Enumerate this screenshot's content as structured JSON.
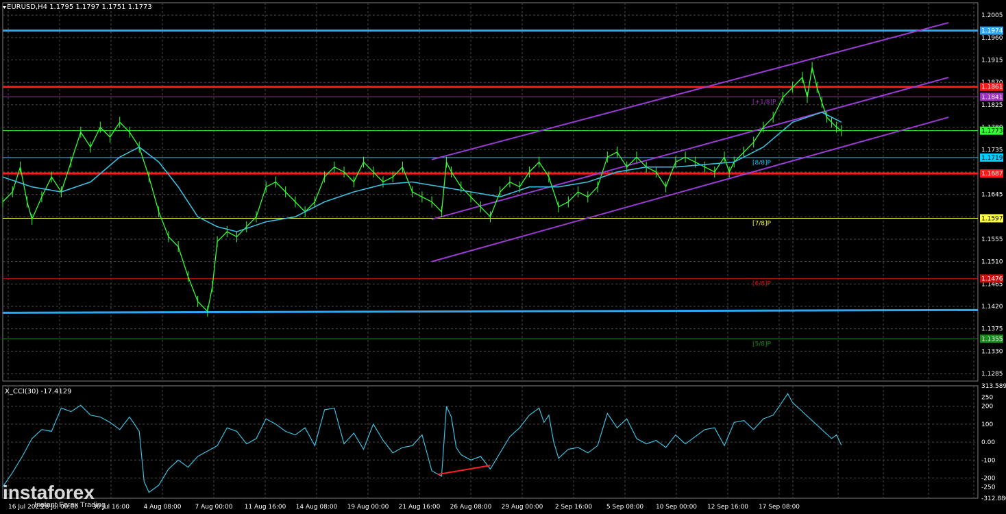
{
  "header": {
    "main_title": "EURUSD,H4  1.1795 1.1797 1.1751 1.1773",
    "cci_title": "X_CCI(30) -17.4129"
  },
  "watermark": {
    "brand": "instaforex",
    "tagline": "Instant Forex Trading"
  },
  "colors": {
    "background": "#000000",
    "grid": "#4a4a4a",
    "price": "#32ff32",
    "ma": "#3bbfe0",
    "channel": "#9b3bd6",
    "level_blue": "#2fa6f0",
    "level_red": "#ff1a1a",
    "level_yellow": "#ffff40",
    "level_darkred": "#cc1111",
    "level_darkgreen": "#1c8a1c",
    "level_purple": "#a030c0",
    "level_cyan": "#00d0ff",
    "cci_line": "#3bbfe0",
    "divergence": "#ff2020"
  },
  "chart_data": [
    {
      "type": "line",
      "symbol": "EURUSD",
      "timeframe": "H4",
      "ohlc": {
        "open": 1.1795,
        "high": 1.1797,
        "low": 1.1751,
        "close": 1.1773
      },
      "y_ticks": [
        "1.2005",
        "1.1960",
        "1.1915",
        "1.1870",
        "1.1825",
        "1.1780",
        "1.1735",
        "1.1690",
        "1.1645",
        "1.1600",
        "1.1555",
        "1.1510",
        "1.1465",
        "1.1420",
        "1.1375",
        "1.1330",
        "1.1285"
      ],
      "ylim": [
        1.127,
        1.203
      ],
      "x_ticks": [
        "16 Jul 2025",
        "28 Jul 00:00",
        "30 Jul 16:00",
        "4 Aug 08:00",
        "7 Aug 00:00",
        "11 Aug 16:00",
        "14 Aug 08:00",
        "19 Aug 00:00",
        "21 Aug 16:00",
        "26 Aug 08:00",
        "29 Aug 00:00",
        "2 Sep 16:00",
        "5 Sep 08:00",
        "10 Sep 00:00",
        "12 Sep 16:00",
        "17 Sep 08:00"
      ],
      "price_series": [
        {
          "x": 0.0,
          "y": 1.163
        },
        {
          "x": 0.01,
          "y": 1.165
        },
        {
          "x": 0.018,
          "y": 1.17
        },
        {
          "x": 0.025,
          "y": 1.163
        },
        {
          "x": 0.03,
          "y": 1.1595
        },
        {
          "x": 0.04,
          "y": 1.164
        },
        {
          "x": 0.05,
          "y": 1.168
        },
        {
          "x": 0.06,
          "y": 1.165
        },
        {
          "x": 0.07,
          "y": 1.171
        },
        {
          "x": 0.08,
          "y": 1.177
        },
        {
          "x": 0.09,
          "y": 1.174
        },
        {
          "x": 0.1,
          "y": 1.178
        },
        {
          "x": 0.11,
          "y": 1.176
        },
        {
          "x": 0.12,
          "y": 1.179
        },
        {
          "x": 0.13,
          "y": 1.177
        },
        {
          "x": 0.14,
          "y": 1.174
        },
        {
          "x": 0.15,
          "y": 1.168
        },
        {
          "x": 0.16,
          "y": 1.161
        },
        {
          "x": 0.17,
          "y": 1.156
        },
        {
          "x": 0.18,
          "y": 1.154
        },
        {
          "x": 0.19,
          "y": 1.148
        },
        {
          "x": 0.2,
          "y": 1.143
        },
        {
          "x": 0.21,
          "y": 1.141
        },
        {
          "x": 0.215,
          "y": 1.146
        },
        {
          "x": 0.22,
          "y": 1.155
        },
        {
          "x": 0.23,
          "y": 1.157
        },
        {
          "x": 0.24,
          "y": 1.156
        },
        {
          "x": 0.25,
          "y": 1.158
        },
        {
          "x": 0.26,
          "y": 1.16
        },
        {
          "x": 0.27,
          "y": 1.166
        },
        {
          "x": 0.28,
          "y": 1.167
        },
        {
          "x": 0.29,
          "y": 1.165
        },
        {
          "x": 0.3,
          "y": 1.163
        },
        {
          "x": 0.31,
          "y": 1.161
        },
        {
          "x": 0.32,
          "y": 1.163
        },
        {
          "x": 0.33,
          "y": 1.168
        },
        {
          "x": 0.34,
          "y": 1.17
        },
        {
          "x": 0.35,
          "y": 1.169
        },
        {
          "x": 0.36,
          "y": 1.167
        },
        {
          "x": 0.37,
          "y": 1.171
        },
        {
          "x": 0.38,
          "y": 1.169
        },
        {
          "x": 0.39,
          "y": 1.167
        },
        {
          "x": 0.4,
          "y": 1.168
        },
        {
          "x": 0.41,
          "y": 1.17
        },
        {
          "x": 0.42,
          "y": 1.165
        },
        {
          "x": 0.43,
          "y": 1.164
        },
        {
          "x": 0.44,
          "y": 1.163
        },
        {
          "x": 0.45,
          "y": 1.161
        },
        {
          "x": 0.455,
          "y": 1.171
        },
        {
          "x": 0.46,
          "y": 1.169
        },
        {
          "x": 0.47,
          "y": 1.166
        },
        {
          "x": 0.48,
          "y": 1.164
        },
        {
          "x": 0.49,
          "y": 1.162
        },
        {
          "x": 0.5,
          "y": 1.16
        },
        {
          "x": 0.51,
          "y": 1.165
        },
        {
          "x": 0.52,
          "y": 1.167
        },
        {
          "x": 0.53,
          "y": 1.166
        },
        {
          "x": 0.54,
          "y": 1.169
        },
        {
          "x": 0.55,
          "y": 1.171
        },
        {
          "x": 0.56,
          "y": 1.168
        },
        {
          "x": 0.57,
          "y": 1.162
        },
        {
          "x": 0.58,
          "y": 1.163
        },
        {
          "x": 0.59,
          "y": 1.165
        },
        {
          "x": 0.6,
          "y": 1.164
        },
        {
          "x": 0.61,
          "y": 1.166
        },
        {
          "x": 0.62,
          "y": 1.172
        },
        {
          "x": 0.63,
          "y": 1.173
        },
        {
          "x": 0.64,
          "y": 1.17
        },
        {
          "x": 0.65,
          "y": 1.172
        },
        {
          "x": 0.66,
          "y": 1.17
        },
        {
          "x": 0.67,
          "y": 1.169
        },
        {
          "x": 0.68,
          "y": 1.166
        },
        {
          "x": 0.69,
          "y": 1.171
        },
        {
          "x": 0.7,
          "y": 1.172
        },
        {
          "x": 0.71,
          "y": 1.171
        },
        {
          "x": 0.72,
          "y": 1.17
        },
        {
          "x": 0.73,
          "y": 1.169
        },
        {
          "x": 0.74,
          "y": 1.172
        },
        {
          "x": 0.745,
          "y": 1.169
        },
        {
          "x": 0.75,
          "y": 1.171
        },
        {
          "x": 0.76,
          "y": 1.173
        },
        {
          "x": 0.77,
          "y": 1.175
        },
        {
          "x": 0.78,
          "y": 1.178
        },
        {
          "x": 0.79,
          "y": 1.18
        },
        {
          "x": 0.8,
          "y": 1.184
        },
        {
          "x": 0.81,
          "y": 1.186
        },
        {
          "x": 0.82,
          "y": 1.188
        },
        {
          "x": 0.825,
          "y": 1.184
        },
        {
          "x": 0.83,
          "y": 1.19
        },
        {
          "x": 0.835,
          "y": 1.186
        },
        {
          "x": 0.84,
          "y": 1.183
        },
        {
          "x": 0.845,
          "y": 1.18
        },
        {
          "x": 0.85,
          "y": 1.179
        },
        {
          "x": 0.855,
          "y": 1.178
        },
        {
          "x": 0.86,
          "y": 1.1773
        }
      ],
      "ma_series": [
        {
          "x": 0.0,
          "y": 1.168
        },
        {
          "x": 0.03,
          "y": 1.166
        },
        {
          "x": 0.06,
          "y": 1.165
        },
        {
          "x": 0.09,
          "y": 1.167
        },
        {
          "x": 0.12,
          "y": 1.172
        },
        {
          "x": 0.14,
          "y": 1.174
        },
        {
          "x": 0.16,
          "y": 1.171
        },
        {
          "x": 0.18,
          "y": 1.166
        },
        {
          "x": 0.2,
          "y": 1.16
        },
        {
          "x": 0.22,
          "y": 1.158
        },
        {
          "x": 0.24,
          "y": 1.157
        },
        {
          "x": 0.27,
          "y": 1.159
        },
        {
          "x": 0.3,
          "y": 1.16
        },
        {
          "x": 0.33,
          "y": 1.163
        },
        {
          "x": 0.36,
          "y": 1.165
        },
        {
          "x": 0.39,
          "y": 1.1665
        },
        {
          "x": 0.42,
          "y": 1.167
        },
        {
          "x": 0.45,
          "y": 1.166
        },
        {
          "x": 0.48,
          "y": 1.165
        },
        {
          "x": 0.51,
          "y": 1.164
        },
        {
          "x": 0.54,
          "y": 1.166
        },
        {
          "x": 0.57,
          "y": 1.166
        },
        {
          "x": 0.6,
          "y": 1.167
        },
        {
          "x": 0.63,
          "y": 1.169
        },
        {
          "x": 0.66,
          "y": 1.17
        },
        {
          "x": 0.69,
          "y": 1.17
        },
        {
          "x": 0.72,
          "y": 1.1705
        },
        {
          "x": 0.75,
          "y": 1.171
        },
        {
          "x": 0.78,
          "y": 1.174
        },
        {
          "x": 0.81,
          "y": 1.179
        },
        {
          "x": 0.84,
          "y": 1.181
        },
        {
          "x": 0.86,
          "y": 1.179
        }
      ],
      "channel_lines": [
        {
          "x1": 0.44,
          "y1": 1.1715,
          "x2": 0.97,
          "y2": 1.199
        },
        {
          "x1": 0.44,
          "y1": 1.1595,
          "x2": 0.97,
          "y2": 1.188
        },
        {
          "x1": 0.44,
          "y1": 1.151,
          "x2": 0.97,
          "y2": 1.18
        }
      ],
      "horizontal_levels": [
        {
          "price": 1.1974,
          "label": "1.1974",
          "color": "level_blue",
          "thick": true
        },
        {
          "price": 1.1861,
          "label": "1.1861",
          "color": "level_red",
          "thick": true
        },
        {
          "price": 1.1841,
          "label": "1.1841",
          "color": "level_purple",
          "thick": false,
          "murrey": "[+1/8]P"
        },
        {
          "price": 1.1773,
          "label": "1.1773",
          "color": "price",
          "thick": false
        },
        {
          "price": 1.1719,
          "label": "1.1719",
          "color": "level_cyan",
          "thick": false,
          "murrey": "[8/8]P"
        },
        {
          "price": 1.1687,
          "label": "1.1687",
          "color": "level_red",
          "thick": true
        },
        {
          "price": 1.1597,
          "label": "1.1597",
          "color": "level_yellow",
          "thick": false,
          "murrey": "[7/8]P"
        },
        {
          "price": 1.1476,
          "label": "1.1476",
          "color": "level_darkred",
          "thick": false,
          "murrey": "[6/8]P"
        },
        {
          "price": 1.1355,
          "label": "1.1355",
          "color": "level_darkgreen",
          "thick": false,
          "murrey": "[5/8]P"
        }
      ],
      "lower_blue_level": {
        "price": 1.141,
        "color": "level_blue"
      }
    },
    {
      "type": "line",
      "name": "X_CCI(30)",
      "value": -17.4129,
      "y_ticks": [
        "313.5897",
        "250",
        "200",
        "100",
        "0.00",
        "-100",
        "-200",
        "-250",
        "-312.8800"
      ],
      "ylim": [
        -312.88,
        313.5897
      ],
      "series": [
        {
          "x": 0.0,
          "y": -250
        },
        {
          "x": 0.01,
          "y": -170
        },
        {
          "x": 0.02,
          "y": -80
        },
        {
          "x": 0.03,
          "y": 20
        },
        {
          "x": 0.04,
          "y": 70
        },
        {
          "x": 0.05,
          "y": 60
        },
        {
          "x": 0.06,
          "y": 190
        },
        {
          "x": 0.07,
          "y": 170
        },
        {
          "x": 0.08,
          "y": 205
        },
        {
          "x": 0.09,
          "y": 150
        },
        {
          "x": 0.1,
          "y": 140
        },
        {
          "x": 0.11,
          "y": 110
        },
        {
          "x": 0.12,
          "y": 70
        },
        {
          "x": 0.13,
          "y": 140
        },
        {
          "x": 0.14,
          "y": 60
        },
        {
          "x": 0.145,
          "y": -220
        },
        {
          "x": 0.15,
          "y": -280
        },
        {
          "x": 0.16,
          "y": -240
        },
        {
          "x": 0.17,
          "y": -150
        },
        {
          "x": 0.18,
          "y": -100
        },
        {
          "x": 0.19,
          "y": -140
        },
        {
          "x": 0.2,
          "y": -80
        },
        {
          "x": 0.22,
          "y": -20
        },
        {
          "x": 0.23,
          "y": 80
        },
        {
          "x": 0.24,
          "y": 60
        },
        {
          "x": 0.25,
          "y": -10
        },
        {
          "x": 0.26,
          "y": 20
        },
        {
          "x": 0.27,
          "y": 130
        },
        {
          "x": 0.28,
          "y": 100
        },
        {
          "x": 0.29,
          "y": 60
        },
        {
          "x": 0.3,
          "y": 40
        },
        {
          "x": 0.31,
          "y": 80
        },
        {
          "x": 0.32,
          "y": -20
        },
        {
          "x": 0.33,
          "y": 180
        },
        {
          "x": 0.34,
          "y": 190
        },
        {
          "x": 0.35,
          "y": -10
        },
        {
          "x": 0.36,
          "y": 50
        },
        {
          "x": 0.37,
          "y": -40
        },
        {
          "x": 0.38,
          "y": 100
        },
        {
          "x": 0.39,
          "y": 10
        },
        {
          "x": 0.4,
          "y": -60
        },
        {
          "x": 0.41,
          "y": -30
        },
        {
          "x": 0.42,
          "y": -20
        },
        {
          "x": 0.43,
          "y": 40
        },
        {
          "x": 0.44,
          "y": -160
        },
        {
          "x": 0.45,
          "y": -190
        },
        {
          "x": 0.455,
          "y": 200
        },
        {
          "x": 0.46,
          "y": 140
        },
        {
          "x": 0.465,
          "y": -30
        },
        {
          "x": 0.47,
          "y": -70
        },
        {
          "x": 0.48,
          "y": -100
        },
        {
          "x": 0.49,
          "y": -80
        },
        {
          "x": 0.5,
          "y": -150
        },
        {
          "x": 0.51,
          "y": -60
        },
        {
          "x": 0.52,
          "y": 30
        },
        {
          "x": 0.53,
          "y": 80
        },
        {
          "x": 0.54,
          "y": 150
        },
        {
          "x": 0.55,
          "y": 190
        },
        {
          "x": 0.555,
          "y": 110
        },
        {
          "x": 0.56,
          "y": 150
        },
        {
          "x": 0.565,
          "y": 0
        },
        {
          "x": 0.57,
          "y": -90
        },
        {
          "x": 0.58,
          "y": -40
        },
        {
          "x": 0.59,
          "y": -30
        },
        {
          "x": 0.6,
          "y": -60
        },
        {
          "x": 0.61,
          "y": -20
        },
        {
          "x": 0.62,
          "y": 160
        },
        {
          "x": 0.63,
          "y": 80
        },
        {
          "x": 0.64,
          "y": 130
        },
        {
          "x": 0.65,
          "y": 20
        },
        {
          "x": 0.66,
          "y": -10
        },
        {
          "x": 0.67,
          "y": 10
        },
        {
          "x": 0.68,
          "y": -30
        },
        {
          "x": 0.69,
          "y": 40
        },
        {
          "x": 0.7,
          "y": -10
        },
        {
          "x": 0.71,
          "y": 30
        },
        {
          "x": 0.72,
          "y": 70
        },
        {
          "x": 0.73,
          "y": 80
        },
        {
          "x": 0.74,
          "y": -20
        },
        {
          "x": 0.75,
          "y": 110
        },
        {
          "x": 0.76,
          "y": 120
        },
        {
          "x": 0.77,
          "y": 70
        },
        {
          "x": 0.78,
          "y": 130
        },
        {
          "x": 0.79,
          "y": 150
        },
        {
          "x": 0.8,
          "y": 230
        },
        {
          "x": 0.805,
          "y": 270
        },
        {
          "x": 0.81,
          "y": 220
        },
        {
          "x": 0.82,
          "y": 170
        },
        {
          "x": 0.83,
          "y": 120
        },
        {
          "x": 0.84,
          "y": 70
        },
        {
          "x": 0.85,
          "y": 20
        },
        {
          "x": 0.855,
          "y": 40
        },
        {
          "x": 0.86,
          "y": -17
        }
      ],
      "divergence_line": {
        "x1": 0.446,
        "y1": -180,
        "x2": 0.5,
        "y2": -130
      }
    }
  ]
}
